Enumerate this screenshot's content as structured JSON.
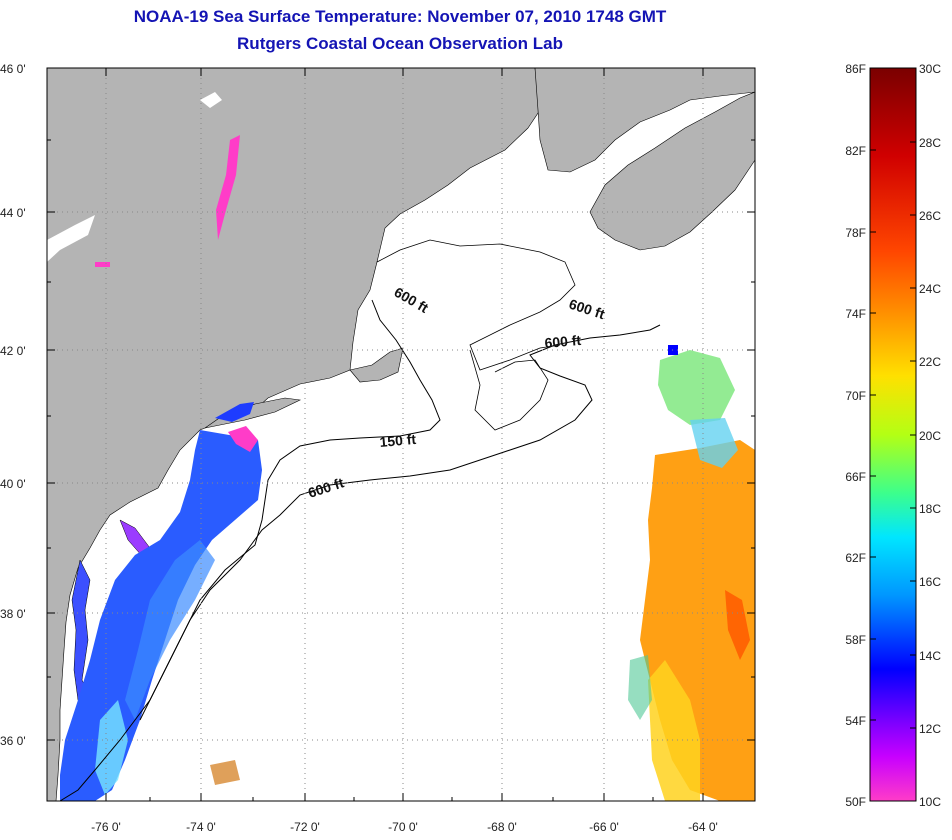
{
  "title": {
    "line1": "NOAA-19 Sea Surface Temperature:  November 07, 2010 1748 GMT",
    "line2": "Rutgers Coastal Ocean Observation Lab"
  },
  "map": {
    "lat_labels": [
      "46 0'",
      "44 0'",
      "42 0'",
      "40 0'",
      "38 0'",
      "36 0'"
    ],
    "lon_labels": [
      "-76 0'",
      "-74 0'",
      "-72 0'",
      "-70 0'",
      "-68 0'",
      "-66 0'",
      "-64 0'"
    ],
    "contour_labels": [
      "600 ft",
      "600 ft",
      "600 ft",
      "150 ft",
      "600 ft"
    ],
    "land_color": "#b4b4b4",
    "ocean_color": "#ffffff"
  },
  "colorbar": {
    "fahrenheit_labels": [
      "86F",
      "82F",
      "78F",
      "74F",
      "70F",
      "66F",
      "62F",
      "58F",
      "54F",
      "50F"
    ],
    "celsius_labels": [
      "30C",
      "28C",
      "26C",
      "24C",
      "22C",
      "20C",
      "18C",
      "16C",
      "14C",
      "12C",
      "10C"
    ],
    "colors": [
      "#7a0000",
      "#c80000",
      "#ff3c00",
      "#ff8c00",
      "#ffd400",
      "#c8ff00",
      "#46ff7a",
      "#00e6ff",
      "#0078ff",
      "#0000ff",
      "#8c00ff",
      "#ff2ec8"
    ]
  }
}
